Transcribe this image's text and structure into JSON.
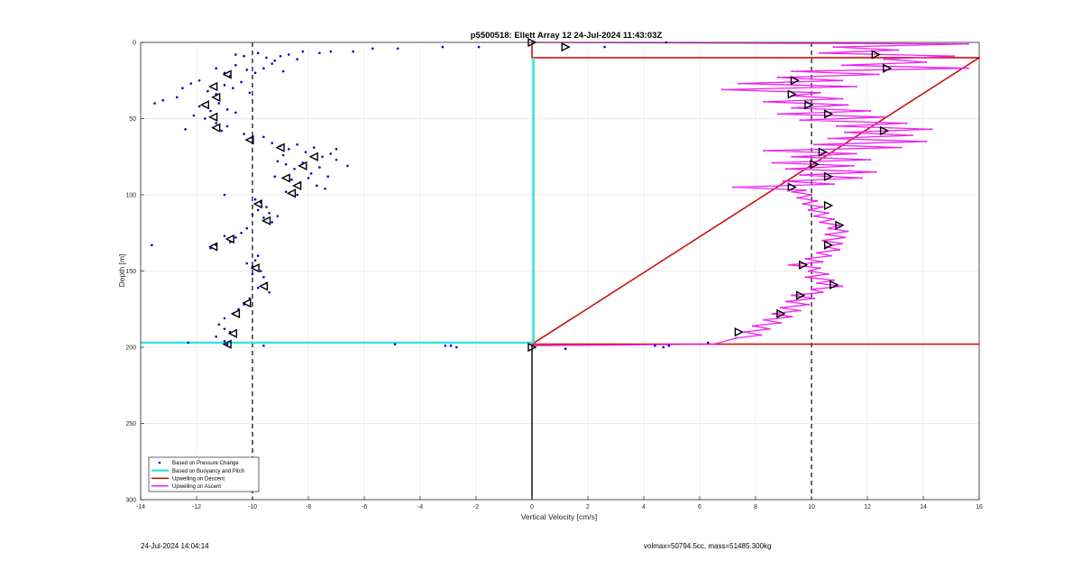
{
  "footer": {
    "timestamp": "24-Jul-2024 14:04:14",
    "vol_mass": "volmax=50794.5cc, mass=51485.300kg"
  },
  "chart_data": {
    "type": "scatter",
    "title": "p5500518: Ellett Array 12 24-Jul-2024 11:43:03Z",
    "xlabel": "Vertical Velocity [cm/s]",
    "ylabel": "Depth [m]",
    "xlim": [
      -14,
      16
    ],
    "ylim": [
      300,
      0
    ],
    "y_reversed": true,
    "grid": true,
    "xticks": [
      -14,
      -12,
      -10,
      -8,
      -6,
      -4,
      -2,
      0,
      2,
      4,
      6,
      8,
      10,
      12,
      14,
      16
    ],
    "yticks": [
      0,
      50,
      100,
      150,
      200,
      250,
      300
    ],
    "legend_position": "bottom-left",
    "reference_lines_x": [
      -10,
      10
    ],
    "surface_depth": 10,
    "bottom_depth": 198,
    "series": [
      {
        "name": "Based on Pressure Change",
        "kind": "points",
        "color": "#0000cc",
        "points": [
          [
            -10.6,
            8
          ],
          [
            -10.3,
            9
          ],
          [
            -9.8,
            7
          ],
          [
            -9.5,
            10
          ],
          [
            -9.2,
            12
          ],
          [
            -9.0,
            9
          ],
          [
            -8.7,
            8
          ],
          [
            -8.4,
            11
          ],
          [
            -8.2,
            6
          ],
          [
            -7.6,
            7
          ],
          [
            -7.2,
            6
          ],
          [
            -6.4,
            6
          ],
          [
            -5.7,
            4
          ],
          [
            -4.8,
            4
          ],
          [
            -3.2,
            3
          ],
          [
            -1.9,
            3
          ],
          [
            -11.3,
            17
          ],
          [
            -11.0,
            20
          ],
          [
            -10.8,
            22
          ],
          [
            -10.6,
            15
          ],
          [
            -10.2,
            18
          ],
          [
            -9.9,
            20
          ],
          [
            -9.6,
            17
          ],
          [
            -9.3,
            14
          ],
          [
            -8.9,
            19
          ],
          [
            -12.5,
            30
          ],
          [
            -12.2,
            27
          ],
          [
            -11.9,
            25
          ],
          [
            -11.6,
            32
          ],
          [
            -11.3,
            34
          ],
          [
            -11.0,
            28
          ],
          [
            -10.7,
            30
          ],
          [
            -10.4,
            26
          ],
          [
            -10.1,
            33
          ],
          [
            -13.2,
            38
          ],
          [
            -12.7,
            36
          ],
          [
            -11.9,
            42
          ],
          [
            -11.5,
            45
          ],
          [
            -11.2,
            40
          ],
          [
            -10.9,
            44
          ],
          [
            -10.6,
            46
          ],
          [
            -12.1,
            48
          ],
          [
            -11.7,
            50
          ],
          [
            -11.3,
            53
          ],
          [
            -10.9,
            55
          ],
          [
            -12.4,
            57
          ],
          [
            -11.1,
            58
          ],
          [
            -13.5,
            40
          ],
          [
            -10.3,
            60
          ],
          [
            -10.0,
            63
          ],
          [
            -9.6,
            62
          ],
          [
            -9.3,
            66
          ],
          [
            -9.0,
            68
          ],
          [
            -8.7,
            70
          ],
          [
            -8.4,
            67
          ],
          [
            -8.1,
            72
          ],
          [
            -7.8,
            69
          ],
          [
            -7.5,
            75
          ],
          [
            -7.2,
            73
          ],
          [
            -7.0,
            70
          ],
          [
            -8.9,
            74
          ],
          [
            -9.1,
            78
          ],
          [
            -8.8,
            80
          ],
          [
            -8.5,
            83
          ],
          [
            -8.2,
            79
          ],
          [
            -7.9,
            86
          ],
          [
            -7.6,
            82
          ],
          [
            -7.3,
            88
          ],
          [
            -7.0,
            77
          ],
          [
            -6.6,
            81
          ],
          [
            -8.6,
            90
          ],
          [
            -8.3,
            92
          ],
          [
            -8.0,
            89
          ],
          [
            -7.7,
            94
          ],
          [
            -7.4,
            96
          ],
          [
            -9.2,
            88
          ],
          [
            -8.8,
            98
          ],
          [
            -8.4,
            100
          ],
          [
            -9.9,
            103
          ],
          [
            -9.7,
            105
          ],
          [
            -9.5,
            108
          ],
          [
            -9.4,
            112
          ],
          [
            -9.6,
            115
          ],
          [
            -9.8,
            110
          ],
          [
            -9.3,
            118
          ],
          [
            -9.1,
            114
          ],
          [
            -10.0,
            113
          ],
          [
            -11.0,
            100
          ],
          [
            -10.2,
            122
          ],
          [
            -10.4,
            125
          ],
          [
            -10.6,
            128
          ],
          [
            -10.8,
            131
          ],
          [
            -11.0,
            127
          ],
          [
            -11.3,
            133
          ],
          [
            -11.5,
            135
          ],
          [
            -13.6,
            133
          ],
          [
            -9.8,
            140
          ],
          [
            -9.9,
            143
          ],
          [
            -10.0,
            147
          ],
          [
            -9.7,
            150
          ],
          [
            -9.6,
            154
          ],
          [
            -9.5,
            158
          ],
          [
            -9.8,
            161
          ],
          [
            -10.0,
            152
          ],
          [
            -10.2,
            145
          ],
          [
            -9.4,
            164
          ],
          [
            -10.1,
            168
          ],
          [
            -10.3,
            172
          ],
          [
            -10.5,
            175
          ],
          [
            -10.7,
            178
          ],
          [
            -11.0,
            181
          ],
          [
            -11.2,
            185
          ],
          [
            -11.0,
            188
          ],
          [
            -10.8,
            190
          ],
          [
            -11.3,
            193
          ],
          [
            -11.0,
            196
          ],
          [
            -10.9,
            198
          ],
          [
            -12.3,
            197
          ],
          [
            -9.6,
            199
          ],
          [
            -4.9,
            198
          ],
          [
            -3.1,
            199
          ],
          [
            -2.9,
            199
          ],
          [
            -2.7,
            200
          ],
          [
            1.2,
            201
          ],
          [
            4.4,
            199
          ],
          [
            4.7,
            200
          ],
          [
            4.9,
            199
          ],
          [
            6.3,
            197
          ],
          [
            2.6,
            3
          ],
          [
            4.8,
            0
          ]
        ]
      },
      {
        "name": "Based on Buoyancy and Pitch",
        "kind": "line",
        "color": "#33e0e8",
        "points": [
          [
            0.05,
            10
          ],
          [
            0.05,
            190
          ],
          [
            0.05,
            197
          ],
          [
            -14,
            197
          ]
        ]
      },
      {
        "name": "Upwelling on Descent",
        "kind": "line",
        "color": "#cc1111",
        "points": [
          [
            0,
            0
          ],
          [
            0,
            10
          ],
          [
            16,
            10
          ],
          [
            0,
            198
          ],
          [
            16,
            198
          ]
        ]
      },
      {
        "name": "Upwelling on Ascent",
        "kind": "line",
        "color": "#ee22ee",
        "points": [
          [
            0,
            199
          ],
          [
            6.5,
            198
          ],
          [
            7.3,
            194
          ],
          [
            8.2,
            192
          ],
          [
            7.6,
            190
          ],
          [
            8.5,
            188
          ],
          [
            7.9,
            186
          ],
          [
            8.9,
            184
          ],
          [
            8.3,
            182
          ],
          [
            9.3,
            180
          ],
          [
            8.6,
            178
          ],
          [
            9.6,
            176
          ],
          [
            8.9,
            174
          ],
          [
            9.9,
            172
          ],
          [
            9.1,
            170
          ],
          [
            10.1,
            168
          ],
          [
            9.3,
            166
          ],
          [
            10.4,
            164
          ],
          [
            10.0,
            162
          ],
          [
            11.1,
            160
          ],
          [
            10.2,
            158
          ],
          [
            10.8,
            156
          ],
          [
            9.8,
            154
          ],
          [
            10.6,
            152
          ],
          [
            9.9,
            150
          ],
          [
            10.3,
            148
          ],
          [
            9.2,
            146
          ],
          [
            10.4,
            144
          ],
          [
            9.8,
            142
          ],
          [
            10.7,
            140
          ],
          [
            10.2,
            138
          ],
          [
            11.0,
            136
          ],
          [
            10.5,
            134
          ],
          [
            11.1,
            132
          ],
          [
            10.4,
            130
          ],
          [
            11.2,
            128
          ],
          [
            10.5,
            126
          ],
          [
            11.3,
            124
          ],
          [
            10.6,
            122
          ],
          [
            11.0,
            120
          ],
          [
            10.3,
            118
          ],
          [
            10.8,
            116
          ],
          [
            10.1,
            114
          ],
          [
            10.6,
            112
          ],
          [
            9.9,
            110
          ],
          [
            10.4,
            108
          ],
          [
            9.7,
            106
          ],
          [
            10.2,
            104
          ],
          [
            9.5,
            102
          ],
          [
            10.0,
            100
          ],
          [
            9.3,
            98
          ],
          [
            9.8,
            97
          ],
          [
            7.2,
            95
          ],
          [
            10.8,
            93
          ],
          [
            9.0,
            91
          ],
          [
            11.8,
            89
          ],
          [
            9.6,
            87
          ],
          [
            12.3,
            85
          ],
          [
            9.1,
            83
          ],
          [
            11.5,
            81
          ],
          [
            8.6,
            79
          ],
          [
            12.1,
            77
          ],
          [
            9.3,
            75
          ],
          [
            11.6,
            73
          ],
          [
            8.3,
            71
          ],
          [
            13.2,
            69
          ],
          [
            10.1,
            67
          ],
          [
            14.1,
            65
          ],
          [
            10.6,
            63
          ],
          [
            13.6,
            61
          ],
          [
            11.2,
            59
          ],
          [
            14.3,
            57
          ],
          [
            10.9,
            55
          ],
          [
            13.4,
            53
          ],
          [
            9.6,
            51
          ],
          [
            12.6,
            49
          ],
          [
            8.8,
            47
          ],
          [
            12.1,
            45
          ],
          [
            9.3,
            43
          ],
          [
            11.3,
            41
          ],
          [
            8.3,
            39
          ],
          [
            11.1,
            37
          ],
          [
            9.3,
            35
          ],
          [
            10.3,
            33
          ],
          [
            6.8,
            31
          ],
          [
            11.6,
            29
          ],
          [
            7.4,
            27
          ],
          [
            11.1,
            25
          ],
          [
            8.8,
            23
          ],
          [
            12.4,
            21
          ],
          [
            9.3,
            19
          ],
          [
            15.6,
            17
          ],
          [
            11.1,
            15
          ],
          [
            14.1,
            13
          ],
          [
            12.6,
            11
          ],
          [
            15.1,
            9
          ],
          [
            10.3,
            7
          ],
          [
            13.1,
            5
          ],
          [
            10.8,
            3
          ],
          [
            15.6,
            1
          ],
          [
            0,
            0
          ]
        ]
      }
    ],
    "markers": {
      "color": "#000000",
      "descent": [
        [
          -10.9,
          198
        ],
        [
          -10.7,
          191
        ],
        [
          -10.6,
          178
        ],
        [
          -10.2,
          171
        ],
        [
          -9.6,
          160
        ],
        [
          -9.9,
          148
        ],
        [
          -11.4,
          134
        ],
        [
          -10.8,
          129
        ],
        [
          -9.5,
          117
        ],
        [
          -9.8,
          106
        ],
        [
          -8.6,
          99
        ],
        [
          -8.4,
          94
        ],
        [
          -8.8,
          89
        ],
        [
          -8.2,
          81
        ],
        [
          -7.8,
          75
        ],
        [
          -9.0,
          69
        ],
        [
          -10.1,
          64
        ],
        [
          -11.3,
          56
        ],
        [
          -11.4,
          49
        ],
        [
          -11.7,
          41
        ],
        [
          -11.3,
          36
        ],
        [
          -11.4,
          29
        ],
        [
          -10.9,
          21
        ]
      ],
      "ascent": [
        [
          0,
          200
        ],
        [
          7.4,
          190
        ],
        [
          8.9,
          178
        ],
        [
          9.6,
          166
        ],
        [
          10.8,
          159
        ],
        [
          9.7,
          146
        ],
        [
          10.6,
          133
        ],
        [
          11.0,
          120
        ],
        [
          10.6,
          107
        ],
        [
          9.3,
          95
        ],
        [
          10.6,
          88
        ],
        [
          10.1,
          80
        ],
        [
          10.4,
          72
        ],
        [
          12.6,
          58
        ],
        [
          10.6,
          47
        ],
        [
          9.9,
          41
        ],
        [
          9.3,
          34
        ],
        [
          9.4,
          25
        ],
        [
          12.7,
          17
        ],
        [
          12.3,
          8
        ],
        [
          1.2,
          3
        ],
        [
          0,
          0
        ]
      ]
    }
  }
}
